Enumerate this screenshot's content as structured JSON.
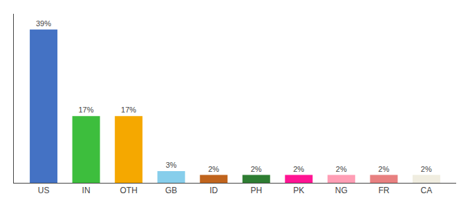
{
  "chart_data": {
    "type": "bar",
    "categories": [
      "US",
      "IN",
      "OTH",
      "GB",
      "ID",
      "PH",
      "PK",
      "NG",
      "FR",
      "CA"
    ],
    "values": [
      39,
      17,
      17,
      3,
      2,
      2,
      2,
      2,
      2,
      2
    ],
    "value_labels": [
      "39%",
      "17%",
      "17%",
      "3%",
      "2%",
      "2%",
      "2%",
      "2%",
      "2%",
      "2%"
    ],
    "data_labels": true,
    "colors": [
      "#4472c4",
      "#3dbe3d",
      "#f5a800",
      "#87ceeb",
      "#c0641d",
      "#2e7d32",
      "#ff1493",
      "#ff9eb5",
      "#e88080",
      "#f0ede0"
    ],
    "ylim": [
      0,
      43
    ],
    "grid": false,
    "tick_labels": "x"
  }
}
